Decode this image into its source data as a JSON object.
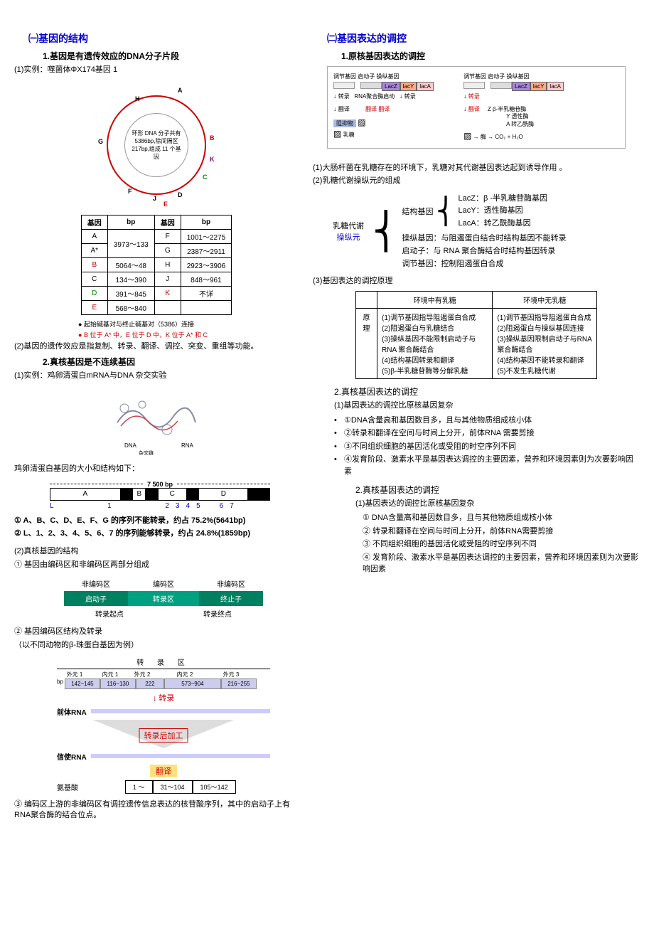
{
  "left": {
    "title": "㈠基因的结构",
    "s1": {
      "h": "1.基因是有遗传效应的DNA分子片段",
      "ex": "(1)实例：噬菌体ΦX174基因 1",
      "circle_text": "环形 DNA 分子共有 5386bp,除间隔区 217bp,组成 11 个基因",
      "labels": {
        "A": "A",
        "B": "B",
        "C": "C",
        "D": "D",
        "E": "E",
        "F": "F",
        "G": "G",
        "H": "H",
        "J": "J",
        "K": "K"
      },
      "tbl": {
        "headers": [
          "基因",
          "bp",
          "基因",
          "bp"
        ],
        "rows": [
          [
            "A",
            "3973～133",
            "F",
            "1001～2275"
          ],
          [
            "A*",
            "",
            "G",
            "2387～2911"
          ],
          [
            "B",
            "5064～48",
            "H",
            "2923～3906"
          ],
          [
            "C",
            "134～390",
            "J",
            "848～961"
          ],
          [
            "D",
            "391～845",
            "K",
            "不详"
          ],
          [
            "E",
            "568～840",
            "",
            ""
          ]
        ],
        "colors": {
          "B_row": "#c00",
          "D_row": "#0a0",
          "E_row": "#c00",
          "K_cell": "#c00",
          "A_rowspan": true
        }
      },
      "note1": "起始碱基对与终止碱基对（5386）连接",
      "note2": "B 位于 A* 中，E 位于 D 中，K 位于 A* 和 C",
      "p2": "(2)基因的遗传效应是指复制、转录、翻译、调控、突变、重组等功能。"
    },
    "s2": {
      "h": "2.真核基因是不连续基因",
      "ex": "(1)实例：鸡卵清蛋白mRNA与DNA 杂交实验",
      "hybrid_labels": {
        "DNA": "DNA",
        "RNA": "RNA",
        "sub": "杂交链"
      },
      "bar_title": "鸡卵清蛋白基因的大小和结构如下：",
      "bp_label": "7 500 bp",
      "segs": [
        "A",
        "B",
        "C",
        "D",
        "E",
        "F",
        "G"
      ],
      "seg_widths": [
        100,
        18,
        18,
        18,
        40,
        18,
        70,
        30
      ],
      "seg_colors": [
        "#fff",
        "#000",
        "#fff",
        "#000",
        "#fff",
        "#000",
        "#fff",
        "#000"
      ],
      "nums": [
        "L",
        "1",
        "2",
        "3",
        "4",
        "5",
        "6",
        "7"
      ],
      "nums_pos": [
        0,
        100,
        118,
        136,
        154,
        194,
        212,
        282
      ],
      "line1": "① A、B、C、D、E、F、G 的序列不能转录，约占 75.2%(5641bp)",
      "line2": "② L、1、2、3、4、5、6、7 的序列能够转录，约占 24.8%(1859bp)",
      "p2h": "(2)真核基因的结构",
      "p2_1": "① 基因由编码区和非编码区两部分组成",
      "struct": {
        "top": [
          "非编码区",
          "编码区",
          "非编码区"
        ],
        "mid": [
          "启动子",
          "转录区",
          "终止子"
        ],
        "bot_l": "转录起点",
        "bot_r": "转录终点"
      },
      "p2_2h": "② 基因编码区结构及转录",
      "p2_2s": "（以不同动物的β-珠蛋白基因为例）",
      "ie": {
        "header": "转 录 区",
        "labels": [
          "外元 1",
          "内元 1",
          "外元 2",
          "内元 2",
          "外元 3"
        ],
        "bp": [
          "142~145",
          "116~130",
          "222",
          "573~904",
          "216~255"
        ],
        "bp_left": "bp",
        "arr1": "转录",
        "prerna": "前体RNA",
        "proc": "转录后加工",
        "mrna": "信使RNA",
        "trans": "翻译",
        "aa_label": "氨基酸",
        "aa": [
          "1 ～",
          "31～104",
          "105～142"
        ]
      },
      "p2_3": "③ 编码区上游的非编码区有调控遗传信息表达的核苷酸序列，其中的启动子上有RNA聚合酶的结合位点。"
    }
  },
  "right": {
    "title": "㈡基因表达的调控",
    "s1": {
      "h": "1.原核基因表达的调控",
      "lac": {
        "left_hdr": "调节基因 启动子 操纵基因",
        "right_hdr": "调节基因 启动子 操纵基因",
        "genes": [
          "LacZ",
          "lacY",
          "lacA"
        ],
        "transcribe": "转录",
        "rna_pol": "RNA聚合酶启动",
        "translate": "翻译",
        "repressor": "阻抑物",
        "lactose": "乳糖",
        "enzymes": [
          "Z β-半乳糖苷酶",
          "Y 透性酶",
          "A 转乙酰酶"
        ],
        "enzyme_label": "酶",
        "co2": "CO₂ + H₂O"
      },
      "p1": "(1)大肠杆菌在乳糖存在的环境下，乳糖对其代谢基因表达起到诱导作用 。",
      "p2": "(2)乳糖代谢操纵元的组成",
      "bracket": {
        "left1": "乳糖代谢",
        "left2": "操纵元",
        "struct_label": "结构基因",
        "struct_items": [
          "LacZ：β -半乳糖苷酶基因",
          "LacY：透性酶基因",
          "LacA：转乙酰酶基因"
        ],
        "other": [
          "操纵基因：与阻遏蛋白结合时结构基因不能转录",
          "启动子：与 RNA 聚合酶结合时结构基因转录",
          "调节基因：控制阻遏蛋白合成"
        ]
      },
      "p3": "(3)基因表达的调控原理",
      "tbl": {
        "h1": "环境中有乳糖",
        "h2": "环境中无乳糖",
        "rowh": "原理",
        "c1": "(1)调节基因指导阻遏蛋白合成\n(2)阻遏蛋白与乳糖结合\n(3)操纵基因不能限制启动子与 RNA 聚合酶结合\n(4)结构基因转录和翻译\n(5)β-半乳糖苷酶等分解乳糖",
        "c2": "(1)调节基因指导阻遏蛋白合成\n(2)阻遏蛋白与操纵基因连接\n(3)操纵基因限制启动子与RNA 聚合酶结合\n(4)结构基因不能转录和翻译\n(5)不发生乳糖代谢"
      }
    },
    "s2": {
      "h": "2.真核基因表达的调控",
      "intro": "(1)基因表达的调控比原核基因复杂",
      "bullets": [
        "①DNA含量高和基因数目多，且与其他物质组成核小体",
        "②转录和翻译在空间与时间上分开，前体RNA 需要剪接",
        "③不同组织细胞的基因活化或受阻的时空序列不同",
        "④发育阶段、激素水平是基因表达调控的主要因素，营养和环境因素则为次要影响因素"
      ],
      "h2": "2.真核基因表达的调控",
      "intro2": "(1)基因表达的调控比原核基因复杂",
      "nums": [
        "① DNA含量高和基因数目多，且与其他物质组成核小体",
        "② 转录和翻译在空间与时间上分开，前体RNA需要剪接",
        "③ 不同组织细胞的基因活化或受阻的时空序列不同",
        "④ 发育阶段、激素水平是基因表达调控的主要因素，营养和环境因素则为次要影响因素"
      ]
    }
  }
}
